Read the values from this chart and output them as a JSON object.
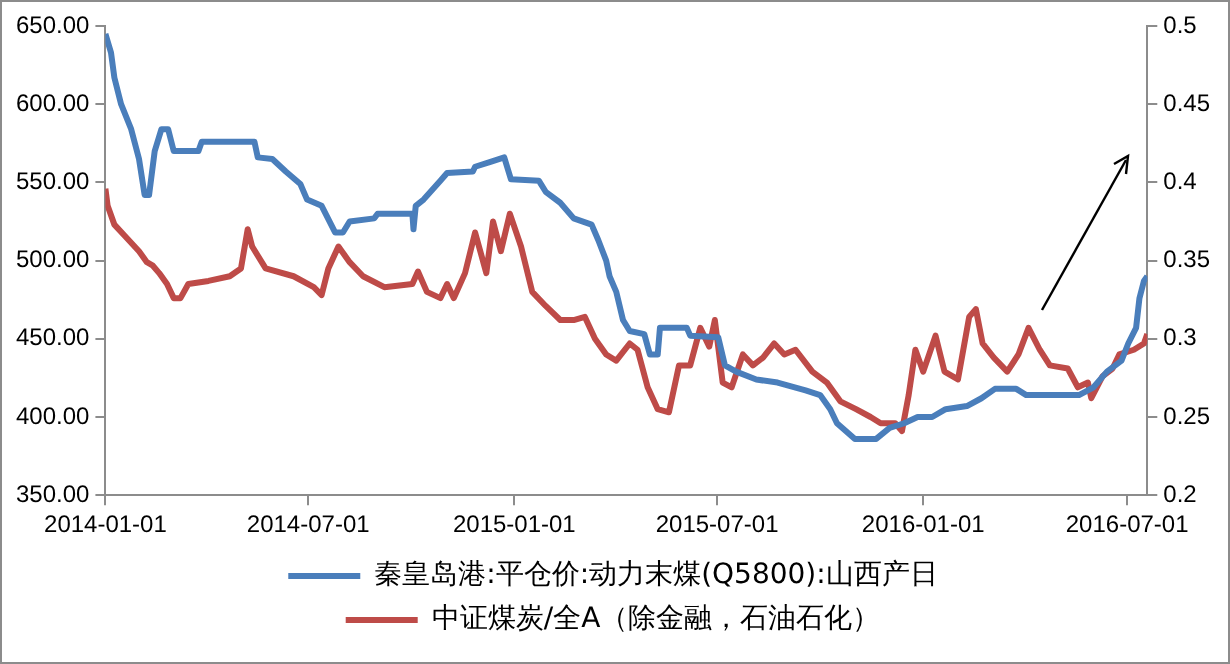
{
  "chart_data": {
    "type": "line",
    "legend": "bottom",
    "grid": false,
    "marker": "none",
    "line_style": "solid",
    "xlim": [
      "2014-01-01",
      "2016-07-19"
    ],
    "xticks": [
      "2014-01-01",
      "2014-07-01",
      "2015-01-01",
      "2015-07-01",
      "2016-01-01",
      "2016-07-01"
    ],
    "ylim": [
      350,
      650
    ],
    "yticks": [
      {
        "value": 350,
        "label": "350.00"
      },
      {
        "value": 400,
        "label": "400.00"
      },
      {
        "value": 450,
        "label": "450.00"
      },
      {
        "value": 500,
        "label": "500.00"
      },
      {
        "value": 550,
        "label": "550.00"
      },
      {
        "value": 600,
        "label": "600.00"
      },
      {
        "value": 650,
        "label": "650.00"
      }
    ],
    "y2lim": [
      0.2,
      0.5
    ],
    "y2ticks": [
      0.2,
      0.25,
      0.3,
      0.35,
      0.4,
      0.45,
      0.5
    ],
    "series": [
      {
        "name": "秦皇岛港:平仓价:动力末煤(Q5800):山西产日",
        "color": "#4a7ebb",
        "x": [
          "2014-01-01",
          "2014-01-06",
          "2014-01-09",
          "2014-01-15",
          "2014-01-24",
          "2014-01-31",
          "2014-02-05",
          "2014-02-09",
          "2014-02-14",
          "2014-02-20",
          "2014-02-26",
          "2014-03-03",
          "2014-03-25",
          "2014-03-28",
          "2014-05-14",
          "2014-05-17",
          "2014-05-30",
          "2014-06-11",
          "2014-06-24",
          "2014-06-30",
          "2014-07-13",
          "2014-07-25",
          "2014-08-01",
          "2014-08-07",
          "2014-08-29",
          "2014-09-01",
          "2014-10-02",
          "2014-10-03",
          "2014-10-05",
          "2014-10-12",
          "2014-10-27",
          "2014-11-02",
          "2014-11-25",
          "2014-11-27",
          "2014-12-10",
          "2014-12-23",
          "2014-12-29",
          "2015-01-23",
          "2015-01-29",
          "2015-02-11",
          "2015-02-23",
          "2015-03-11",
          "2015-03-17",
          "2015-03-24",
          "2015-03-27",
          "2015-04-02",
          "2015-04-08",
          "2015-04-14",
          "2015-04-27",
          "2015-05-02",
          "2015-05-09",
          "2015-05-11",
          "2015-06-04",
          "2015-06-07",
          "2015-07-02",
          "2015-07-08",
          "2015-07-18",
          "2015-08-05",
          "2015-08-24",
          "2015-09-18",
          "2015-10-01",
          "2015-10-10",
          "2015-10-16",
          "2015-11-01",
          "2015-11-20",
          "2015-12-02",
          "2015-12-15",
          "2015-12-27",
          "2016-01-09",
          "2016-01-21",
          "2016-02-09",
          "2016-02-22",
          "2016-03-05",
          "2016-03-24",
          "2016-04-02",
          "2016-04-18",
          "2016-05-19",
          "2016-06-01",
          "2016-06-13",
          "2016-06-26",
          "2016-07-02",
          "2016-07-09",
          "2016-07-12",
          "2016-07-16",
          "2016-07-19"
        ],
        "values": [
          645,
          633,
          617,
          600,
          584,
          565,
          542,
          542,
          570,
          584,
          584,
          570,
          570,
          576,
          576,
          566,
          565,
          557,
          549,
          539,
          535,
          518,
          518,
          525,
          527,
          530,
          530,
          520,
          535,
          539,
          551,
          556,
          557,
          560,
          563,
          566,
          552,
          551,
          544,
          537,
          527,
          523,
          513,
          500,
          490,
          480,
          462,
          455,
          453,
          440,
          440,
          457,
          457,
          452,
          451,
          433,
          429,
          424,
          422,
          417,
          414,
          405,
          396,
          386,
          386,
          393,
          396,
          400,
          400,
          405,
          407,
          412,
          418,
          418,
          414,
          414,
          414,
          419,
          429,
          436,
          447,
          457,
          476,
          487,
          490
        ]
      },
      {
        "name": "中证煤炭/全A（除金融，石油石化）",
        "color": "#be4b48",
        "axis": "y2",
        "x": [
          "2014-01-01",
          "2014-01-03",
          "2014-01-09",
          "2014-01-18",
          "2014-01-31",
          "2014-02-07",
          "2014-02-12",
          "2014-02-18",
          "2014-02-25",
          "2014-03-03",
          "2014-03-09",
          "2014-03-16",
          "2014-04-03",
          "2014-04-22",
          "2014-05-02",
          "2014-05-08",
          "2014-05-12",
          "2014-05-24",
          "2014-06-18",
          "2014-07-06",
          "2014-07-13",
          "2014-07-19",
          "2014-07-28",
          "2014-08-07",
          "2014-08-19",
          "2014-09-07",
          "2014-10-02",
          "2014-10-07",
          "2014-10-15",
          "2014-10-27",
          "2014-11-02",
          "2014-11-08",
          "2014-11-18",
          "2014-11-27",
          "2014-12-07",
          "2014-12-13",
          "2014-12-20",
          "2014-12-28",
          "2015-01-07",
          "2015-01-17",
          "2015-01-29",
          "2015-02-11",
          "2015-02-23",
          "2015-03-05",
          "2015-03-14",
          "2015-03-24",
          "2015-04-02",
          "2015-04-14",
          "2015-04-21",
          "2015-04-30",
          "2015-05-09",
          "2015-05-19",
          "2015-05-28",
          "2015-06-07",
          "2015-06-16",
          "2015-06-24",
          "2015-06-29",
          "2015-07-06",
          "2015-07-14",
          "2015-07-24",
          "2015-08-02",
          "2015-08-11",
          "2015-08-21",
          "2015-08-30",
          "2015-09-09",
          "2015-09-24",
          "2015-10-07",
          "2015-10-19",
          "2015-11-02",
          "2015-11-15",
          "2015-11-24",
          "2015-12-07",
          "2015-12-13",
          "2015-12-19",
          "2015-12-25",
          "2016-01-01",
          "2016-01-12",
          "2016-01-20",
          "2016-02-01",
          "2016-02-11",
          "2016-02-17",
          "2016-02-23",
          "2016-03-04",
          "2016-03-16",
          "2016-03-26",
          "2016-04-04",
          "2016-04-14",
          "2016-04-23",
          "2016-05-09",
          "2016-05-18",
          "2016-05-27",
          "2016-05-30",
          "2016-06-09",
          "2016-06-18",
          "2016-06-24",
          "2016-07-07",
          "2016-07-16",
          "2016-07-19"
        ],
        "values": [
          0.396,
          0.385,
          0.373,
          0.366,
          0.356,
          0.349,
          0.347,
          0.342,
          0.335,
          0.326,
          0.326,
          0.335,
          0.337,
          0.34,
          0.345,
          0.37,
          0.359,
          0.345,
          0.34,
          0.333,
          0.328,
          0.345,
          0.359,
          0.349,
          0.34,
          0.333,
          0.335,
          0.343,
          0.33,
          0.326,
          0.335,
          0.326,
          0.342,
          0.368,
          0.342,
          0.375,
          0.356,
          0.38,
          0.359,
          0.33,
          0.321,
          0.312,
          0.312,
          0.314,
          0.3,
          0.29,
          0.286,
          0.297,
          0.293,
          0.269,
          0.255,
          0.253,
          0.283,
          0.283,
          0.307,
          0.295,
          0.312,
          0.272,
          0.269,
          0.29,
          0.283,
          0.288,
          0.297,
          0.29,
          0.293,
          0.279,
          0.272,
          0.26,
          0.255,
          0.25,
          0.246,
          0.246,
          0.241,
          0.264,
          0.293,
          0.279,
          0.302,
          0.279,
          0.274,
          0.314,
          0.319,
          0.297,
          0.288,
          0.279,
          0.29,
          0.307,
          0.293,
          0.283,
          0.281,
          0.269,
          0.272,
          0.262,
          0.276,
          0.281,
          0.29,
          0.293,
          0.297,
          0.303
        ]
      }
    ]
  }
}
